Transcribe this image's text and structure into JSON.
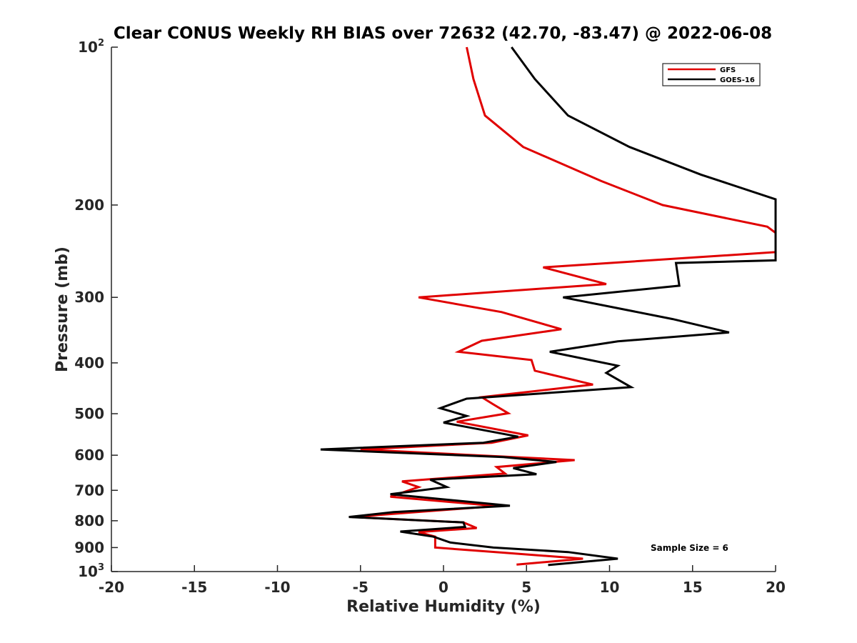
{
  "chart_data": {
    "type": "line",
    "title": "Clear CONUS Weekly RH BIAS over 72632 (42.70, -83.47) @ 2022-06-08",
    "xlabel": "Relative Humidity (%)",
    "ylabel": "Pressure (mb)",
    "xlim": [
      -20,
      20
    ],
    "ylim": [
      100,
      1000
    ],
    "y_scale": "log",
    "y_reversed": true,
    "grid": false,
    "legend_position": "top-right",
    "x_ticks": [
      "-20",
      "-15",
      "-10",
      "-5",
      "0",
      "5",
      "10",
      "15",
      "20"
    ],
    "y_ticks": [
      {
        "base": "10",
        "exp": "2",
        "value": 100
      },
      {
        "base": "200",
        "exp": "",
        "value": 200
      },
      {
        "base": "300",
        "exp": "",
        "value": 300
      },
      {
        "base": "400",
        "exp": "",
        "value": 400
      },
      {
        "base": "500",
        "exp": "",
        "value": 500
      },
      {
        "base": "600",
        "exp": "",
        "value": 600
      },
      {
        "base": "700",
        "exp": "",
        "value": 700
      },
      {
        "base": "800",
        "exp": "",
        "value": 800
      },
      {
        "base": "900",
        "exp": "",
        "value": 900
      },
      {
        "base": "10",
        "exp": "3",
        "value": 1000
      }
    ],
    "annotation": "Sample Size = 6",
    "series": [
      {
        "name": "GFS",
        "color": "#e00000",
        "points": [
          [
            1.4,
            100
          ],
          [
            1.8,
            115
          ],
          [
            2.5,
            135
          ],
          [
            4.8,
            155
          ],
          [
            9.5,
            180
          ],
          [
            13.2,
            200
          ],
          [
            19.5,
            220
          ],
          [
            20.5,
            226
          ],
          [
            20.5,
            246
          ],
          [
            6.0,
            263
          ],
          [
            9.8,
            283
          ],
          [
            -1.5,
            300
          ],
          [
            3.5,
            320
          ],
          [
            7.1,
            345
          ],
          [
            2.3,
            363
          ],
          [
            0.9,
            381
          ],
          [
            5.3,
            395
          ],
          [
            5.5,
            414
          ],
          [
            9.0,
            440
          ],
          [
            2.3,
            465
          ],
          [
            3.0,
            480
          ],
          [
            3.9,
            499
          ],
          [
            0.8,
            518
          ],
          [
            5.1,
            550
          ],
          [
            2.9,
            568
          ],
          [
            -5.0,
            585
          ],
          [
            2.0,
            600
          ],
          [
            7.9,
            613
          ],
          [
            3.2,
            632
          ],
          [
            3.7,
            650
          ],
          [
            -2.5,
            673
          ],
          [
            -1.5,
            690
          ],
          [
            -3.2,
            720
          ],
          [
            3.2,
            750
          ],
          [
            -5.5,
            787
          ],
          [
            1.2,
            806
          ],
          [
            2.0,
            826
          ],
          [
            -1.5,
            841
          ],
          [
            -0.5,
            858
          ],
          [
            -0.5,
            900
          ],
          [
            3.5,
            920
          ],
          [
            8.4,
            945
          ],
          [
            4.4,
            970
          ]
        ]
      },
      {
        "name": "GOES-16",
        "color": "#000000",
        "points": [
          [
            4.1,
            100
          ],
          [
            5.5,
            115
          ],
          [
            7.5,
            135
          ],
          [
            11.2,
            155
          ],
          [
            15.5,
            175
          ],
          [
            20.0,
            195
          ],
          [
            20.0,
            255
          ],
          [
            14.0,
            258
          ],
          [
            14.2,
            285
          ],
          [
            7.2,
            300
          ],
          [
            13.8,
            330
          ],
          [
            17.2,
            350
          ],
          [
            10.5,
            364
          ],
          [
            6.4,
            381
          ],
          [
            10.5,
            405
          ],
          [
            9.8,
            418
          ],
          [
            11.3,
            445
          ],
          [
            1.4,
            468
          ],
          [
            -0.2,
            488
          ],
          [
            1.4,
            505
          ],
          [
            0.0,
            520
          ],
          [
            4.5,
            553
          ],
          [
            2.4,
            568
          ],
          [
            -7.4,
            585
          ],
          [
            3.6,
            605
          ],
          [
            6.8,
            618
          ],
          [
            4.2,
            635
          ],
          [
            5.6,
            652
          ],
          [
            -0.8,
            668
          ],
          [
            0.2,
            690
          ],
          [
            -3.2,
            712
          ],
          [
            4.0,
            749
          ],
          [
            -3.0,
            770
          ],
          [
            -5.7,
            787
          ],
          [
            1.2,
            806
          ],
          [
            1.3,
            822
          ],
          [
            -2.6,
            839
          ],
          [
            -0.6,
            858
          ],
          [
            0.4,
            880
          ],
          [
            3.0,
            900
          ],
          [
            7.5,
            918
          ],
          [
            10.5,
            945
          ],
          [
            6.3,
            972
          ]
        ]
      }
    ]
  }
}
